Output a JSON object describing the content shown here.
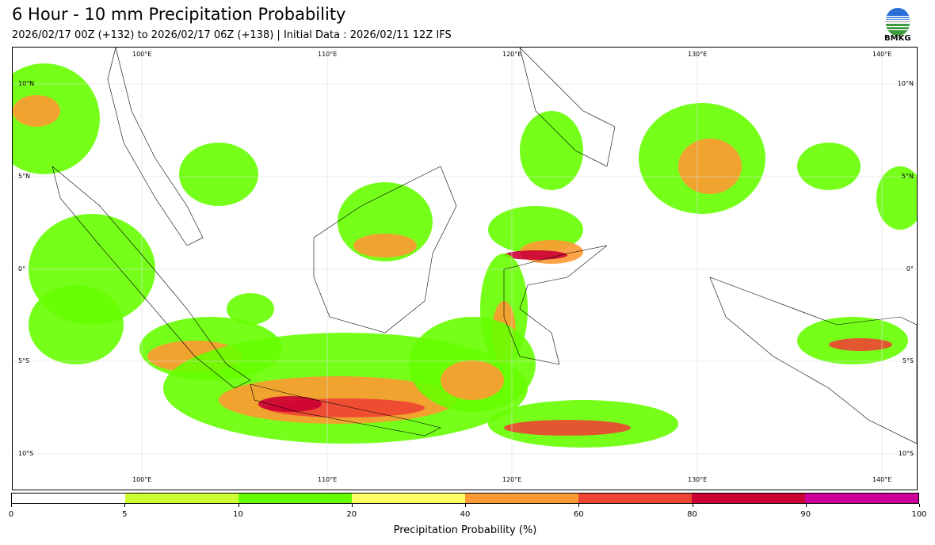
{
  "header": {
    "title": "6 Hour - 10 mm Precipitation Probability",
    "subtitle": "2026/02/17 00Z (+132) to 2026/02/17 06Z (+138) | Initial Data : 2026/02/11 12Z IFS",
    "logo_text": "BMKG"
  },
  "map": {
    "lon_labels": [
      "100°E",
      "110°E",
      "120°E",
      "130°E",
      "140°E"
    ],
    "lat_labels": [
      "10°N",
      "5°N",
      "0°",
      "5°S",
      "10°S"
    ]
  },
  "colorbar": {
    "title": "Precipitation Probability (%)",
    "ticks": [
      "0",
      "5",
      "10",
      "20",
      "40",
      "60",
      "80",
      "90",
      "100"
    ],
    "colors": [
      "#ffffff",
      "#ccff33",
      "#66ff00",
      "#ffff66",
      "#ff9933",
      "#ee4433",
      "#cc0033",
      "#cc0099"
    ]
  }
}
